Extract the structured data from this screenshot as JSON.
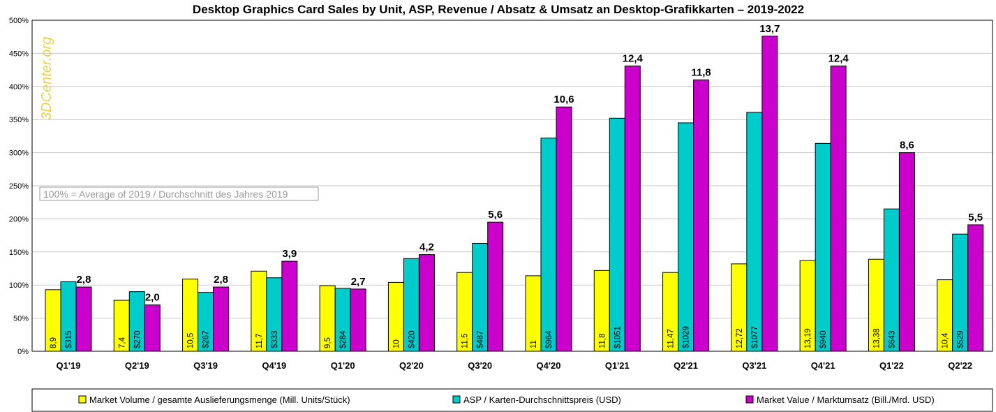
{
  "chart_data": {
    "type": "bar",
    "title": "Desktop Graphics Card Sales by Unit, ASP, Revenue  / Absatz & Umsatz an Desktop-Grafikkarten – 2019-2022",
    "watermark": "3DCenter.org",
    "note": "100% = Average of 2019 / Durchschnitt des Jahres 2019",
    "ylim": [
      0,
      500
    ],
    "yticks": [
      "0%",
      "50%",
      "100%",
      "150%",
      "200%",
      "250%",
      "300%",
      "350%",
      "400%",
      "450%",
      "500%"
    ],
    "ytick_values": [
      0,
      50,
      100,
      150,
      200,
      250,
      300,
      350,
      400,
      450,
      500
    ],
    "grid": true,
    "legend_position": "bottom",
    "categories": [
      "Q1'19",
      "Q2'19",
      "Q3'19",
      "Q4'19",
      "Q1'20",
      "Q2'20",
      "Q3'20",
      "Q4'20",
      "Q1'21",
      "Q2'21",
      "Q3'21",
      "Q4'21",
      "Q1'22",
      "Q2'22"
    ],
    "series": [
      {
        "name": "Market Volume / gesamte Auslieferungsmenge (Mill. Units/Stück)",
        "color": "#ffff00",
        "values": [
          93,
          77,
          109,
          121,
          99,
          104,
          119,
          114,
          122,
          119,
          132,
          137,
          139,
          108
        ],
        "labels": [
          "8,9",
          "7,4",
          "10,5",
          "11,7",
          "9,5",
          "10",
          "11,5",
          "11",
          "11,8",
          "11,47",
          "12,72",
          "13,19",
          "13,38",
          "10,4"
        ],
        "label_position": "inside-vertical"
      },
      {
        "name": "ASP / Karten-Durchschnittspreis (USD)",
        "color": "#00cccc",
        "values": [
          105,
          90,
          89,
          111,
          95,
          140,
          163,
          322,
          352,
          345,
          361,
          314,
          215,
          177
        ],
        "labels": [
          "$315",
          "$270",
          "$267",
          "$333",
          "$284",
          "$420",
          "$487",
          "$964",
          "$1051",
          "$1029",
          "$1077",
          "$940",
          "$643",
          "$529"
        ],
        "label_position": "inside-vertical"
      },
      {
        "name": "Market Value / Marktumsatz (Bill./Mrd. USD)",
        "color": "#cc00cc",
        "values": [
          97,
          70,
          97,
          136,
          94,
          146,
          195,
          369,
          431,
          410,
          476,
          431,
          300,
          191
        ],
        "labels": [
          "2,8",
          "2,0",
          "2,8",
          "3,9",
          "2,7",
          "4,2",
          "5,6",
          "10,6",
          "12,4",
          "11,8",
          "13,7",
          "12,4",
          "8,6",
          "5,5"
        ],
        "label_position": "top"
      }
    ]
  }
}
